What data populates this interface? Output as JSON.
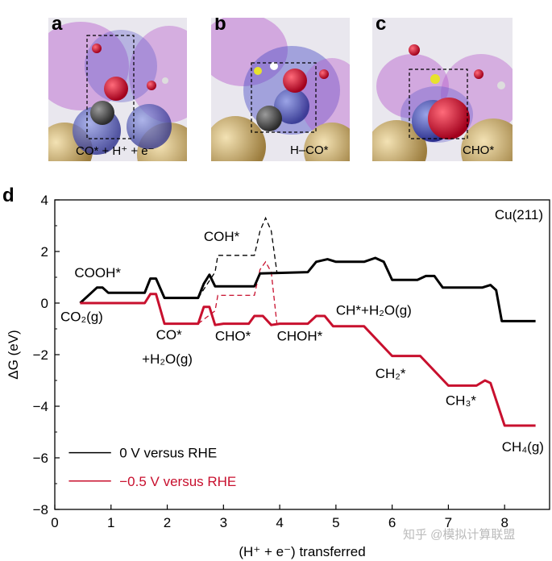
{
  "panels": [
    {
      "letter": "a",
      "caption": "CO* + H⁺ + e⁻"
    },
    {
      "letter": "b",
      "caption": "H–CO*"
    },
    {
      "letter": "c",
      "caption": "CHO*"
    }
  ],
  "chart_data": {
    "type": "line",
    "panel_letter": "d",
    "title": "Cu(211)",
    "xlabel": "(H⁺ + e⁻) transferred",
    "ylabel": "ΔG (eV)",
    "xlim": [
      0,
      8.8
    ],
    "ylim": [
      -8,
      4
    ],
    "xticks": [
      "0",
      "1",
      "2",
      "3",
      "4",
      "5",
      "6",
      "7",
      "8"
    ],
    "yticks": [
      "4",
      "2",
      "0",
      "−2",
      "−4",
      "−6",
      "−8"
    ],
    "series": [
      {
        "name": "0 V versus RHE",
        "color": "#000000",
        "points": [
          [
            0.45,
            0
          ],
          [
            0.65,
            0.4
          ],
          [
            0.75,
            0.6
          ],
          [
            0.85,
            0.6
          ],
          [
            0.95,
            0.4
          ],
          [
            1.6,
            0.4
          ],
          [
            1.7,
            0.95
          ],
          [
            1.8,
            0.95
          ],
          [
            1.95,
            0.2
          ],
          [
            2.55,
            0.2
          ],
          [
            2.65,
            0.75
          ],
          [
            2.75,
            1.1
          ],
          [
            2.85,
            0.65
          ],
          [
            3.55,
            0.65
          ],
          [
            3.65,
            1.15
          ],
          [
            4.5,
            1.2
          ],
          [
            4.65,
            1.6
          ],
          [
            4.85,
            1.7
          ],
          [
            5.0,
            1.6
          ],
          [
            5.5,
            1.6
          ],
          [
            5.7,
            1.75
          ],
          [
            5.85,
            1.6
          ],
          [
            6.0,
            0.9
          ],
          [
            6.45,
            0.9
          ],
          [
            6.6,
            1.05
          ],
          [
            6.75,
            1.05
          ],
          [
            6.9,
            0.6
          ],
          [
            7.6,
            0.6
          ],
          [
            7.75,
            0.7
          ],
          [
            7.85,
            0.5
          ],
          [
            7.95,
            -0.7
          ],
          [
            8.55,
            -0.7
          ]
        ]
      },
      {
        "name": "−0.5 V versus RHE",
        "color": "#c8102e",
        "points": [
          [
            0.45,
            0
          ],
          [
            1.6,
            0
          ],
          [
            1.7,
            0.35
          ],
          [
            1.8,
            0.35
          ],
          [
            1.95,
            -0.8
          ],
          [
            2.55,
            -0.8
          ],
          [
            2.65,
            -0.15
          ],
          [
            2.75,
            -0.15
          ],
          [
            2.85,
            -0.85
          ],
          [
            3.0,
            -0.8
          ],
          [
            3.45,
            -0.8
          ],
          [
            3.55,
            -0.5
          ],
          [
            3.7,
            -0.5
          ],
          [
            3.85,
            -0.85
          ],
          [
            4.0,
            -0.8
          ],
          [
            4.5,
            -0.8
          ],
          [
            4.65,
            -0.5
          ],
          [
            4.8,
            -0.5
          ],
          [
            4.95,
            -0.9
          ],
          [
            5.5,
            -0.9
          ],
          [
            6.0,
            -2.05
          ],
          [
            6.5,
            -2.05
          ],
          [
            7.0,
            -3.2
          ],
          [
            7.5,
            -3.2
          ],
          [
            7.65,
            -3.0
          ],
          [
            7.75,
            -3.1
          ],
          [
            8.0,
            -4.75
          ],
          [
            8.55,
            -4.75
          ]
        ]
      }
    ],
    "dashed_paths": [
      {
        "color": "#000000",
        "points": [
          [
            2.55,
            0.2
          ],
          [
            2.85,
            1.2
          ],
          [
            2.9,
            1.85
          ],
          [
            3.55,
            1.85
          ],
          [
            3.65,
            2.8
          ],
          [
            3.75,
            3.3
          ],
          [
            3.85,
            2.8
          ],
          [
            3.95,
            1.2
          ]
        ]
      },
      {
        "color": "#c8102e",
        "points": [
          [
            2.55,
            -0.8
          ],
          [
            2.85,
            -0.3
          ],
          [
            2.9,
            0.3
          ],
          [
            3.55,
            0.3
          ],
          [
            3.65,
            1.3
          ],
          [
            3.75,
            1.6
          ],
          [
            3.85,
            1.2
          ],
          [
            3.95,
            -0.8
          ]
        ]
      }
    ],
    "annotations": [
      {
        "text": "COOH*",
        "x": 0.35,
        "y": 1.0
      },
      {
        "text": "CO₂(g)",
        "x": 0.1,
        "y": -0.7
      },
      {
        "text": "CO*",
        "x": 1.8,
        "y": -1.4
      },
      {
        "text": "+H₂O(g)",
        "x": 1.55,
        "y": -2.35
      },
      {
        "text": "COH*",
        "x": 2.65,
        "y": 2.4
      },
      {
        "text": "CHO*",
        "x": 2.85,
        "y": -1.45
      },
      {
        "text": "CHOH*",
        "x": 3.95,
        "y": -1.45
      },
      {
        "text": "CH*+H₂O(g)",
        "x": 5.0,
        "y": -0.45
      },
      {
        "text": "CH₂*",
        "x": 5.7,
        "y": -2.9
      },
      {
        "text": "CH₃*",
        "x": 6.95,
        "y": -3.95
      },
      {
        "text": "CH₄(g)",
        "x": 7.95,
        "y": -5.75
      }
    ],
    "legend": {
      "position": "bottom-left",
      "labels": [
        "0 V versus RHE",
        "−0.5 V versus RHE"
      ]
    }
  },
  "watermark": "知乎 @模拟计算联盟"
}
